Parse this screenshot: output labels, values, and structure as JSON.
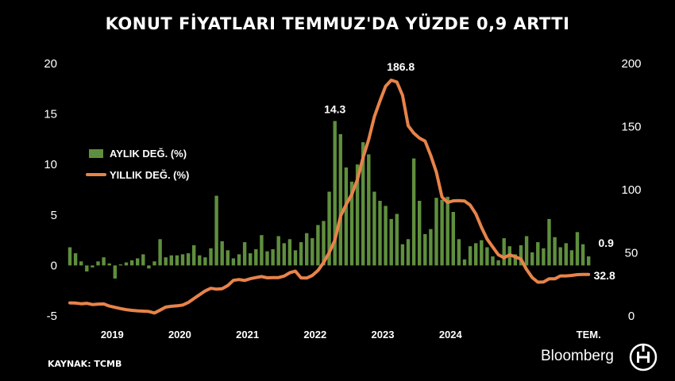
{
  "title": "KONUT FİYATLARI TEMMUZ'DA YÜZDE 0,9 ARTTI",
  "source": "KAYNAK: TCMB",
  "brand": "Bloomberg",
  "colors": {
    "background": "#000000",
    "bar": "#5f8f3e",
    "line": "#e8834a",
    "text": "#ffffff"
  },
  "chart_data": {
    "type": "bar+line",
    "x_labels": [
      "2019",
      "2020",
      "2021",
      "2022",
      "2023",
      "2024",
      "TEM."
    ],
    "y_left": {
      "ticks": [
        "-5",
        "0",
        "5",
        "10",
        "15",
        "20"
      ],
      "range": [
        -5,
        20
      ]
    },
    "y_right": {
      "ticks": [
        "0",
        "50",
        "100",
        "150",
        "200"
      ],
      "range": [
        0,
        200
      ]
    },
    "legend": [
      {
        "label": "AYLIK DEĞ. (%)",
        "marker": "bar"
      },
      {
        "label": "YILLIK DEĞ. (%)",
        "marker": "line"
      }
    ],
    "annotations": [
      "14.3",
      "186.8",
      "0.9",
      "32.8"
    ],
    "start_month": "2018-06",
    "series": [
      {
        "name": "AYLIK DEĞ. (%)",
        "axis": "left",
        "type": "bar",
        "values": [
          1.8,
          1.2,
          0.4,
          -0.6,
          -0.2,
          0.4,
          0.8,
          0.2,
          -1.3,
          0.1,
          0.3,
          0.5,
          0.7,
          1.1,
          -0.3,
          0.4,
          2.6,
          0.8,
          1.0,
          1.0,
          1.1,
          1.2,
          2.0,
          1.0,
          0.8,
          1.7,
          6.9,
          2.4,
          1.5,
          0.7,
          1.1,
          2.3,
          1.2,
          1.6,
          3.0,
          1.4,
          1.6,
          2.9,
          2.2,
          2.6,
          1.5,
          2.3,
          3.2,
          2.7,
          4.0,
          4.4,
          7.3,
          14.3,
          13.0,
          9.7,
          8.3,
          10.0,
          12.2,
          11.0,
          7.3,
          6.4,
          5.9,
          4.6,
          5.1,
          2.1,
          2.6,
          10.6,
          6.4,
          3.1,
          3.6,
          6.7,
          6.5,
          6.8,
          5.3,
          2.6,
          0.6,
          1.9,
          2.2,
          2.5,
          1.8,
          0.9,
          0.5,
          2.7,
          1.9,
          1.1,
          2.0,
          2.9,
          1.3,
          2.3,
          1.7,
          4.6,
          2.8,
          1.8,
          2.2,
          1.5,
          3.3,
          2.1,
          0.9
        ]
      },
      {
        "name": "YILLIK DEĞ. (%)",
        "axis": "right",
        "type": "line",
        "values": [
          10.3,
          10.2,
          9.6,
          10.0,
          9.0,
          9.4,
          9.5,
          7.8,
          6.8,
          5.8,
          5.0,
          4.4,
          4.0,
          3.8,
          3.5,
          2.3,
          4.6,
          7.0,
          7.6,
          8.0,
          8.6,
          10.6,
          13.8,
          16.8,
          19.8,
          21.9,
          21.2,
          21.5,
          24.0,
          28.2,
          28.8,
          28.1,
          29.5,
          30.4,
          31.2,
          30.2,
          30.4,
          30.4,
          31.6,
          34.2,
          35.5,
          30.1,
          30.0,
          32.1,
          36.0,
          42.3,
          50.2,
          60.0,
          79.0,
          88.3,
          96.3,
          108.1,
          125.5,
          139.8,
          157.8,
          170.4,
          182.0,
          186.8,
          185.3,
          174.8,
          150.7,
          144.8,
          140.9,
          138.5,
          127.2,
          113.9,
          94.2,
          89.9,
          91.2,
          91.4,
          91.0,
          87.8,
          80.9,
          70.2,
          60.9,
          54.6,
          48.4,
          46.1,
          48.4,
          46.8,
          45.0,
          36.8,
          30.4,
          26.7,
          26.9,
          29.4,
          29.4,
          31.7,
          31.7,
          32.1,
          32.7,
          32.8,
          32.8
        ]
      }
    ]
  }
}
